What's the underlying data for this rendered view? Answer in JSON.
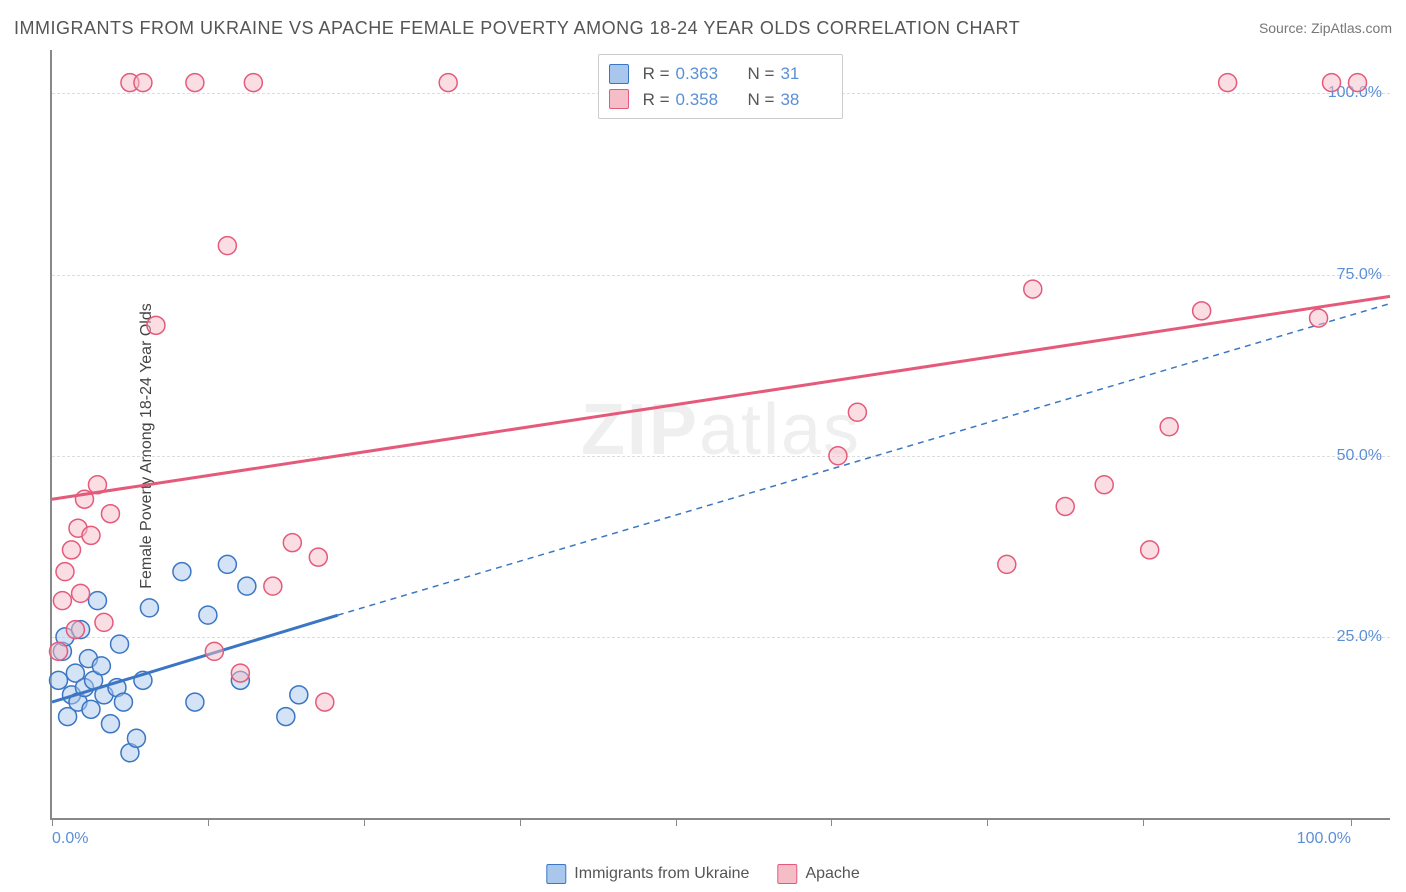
{
  "title": "IMMIGRANTS FROM UKRAINE VS APACHE FEMALE POVERTY AMONG 18-24 YEAR OLDS CORRELATION CHART",
  "source_prefix": "Source: ",
  "source": "ZipAtlas.com",
  "ylabel": "Female Poverty Among 18-24 Year Olds",
  "watermark": "ZIPatlas",
  "chart": {
    "type": "scatter",
    "background_color": "#ffffff",
    "grid_color": "#dddddd",
    "axis_color": "#888888",
    "xlim": [
      0,
      103
    ],
    "ylim": [
      0,
      106
    ],
    "xticks": [
      0.0,
      12.0,
      24.0,
      36.0,
      48.0,
      60.0,
      72.0,
      84.0,
      100.0
    ],
    "xtick_labels": {
      "0": "0.0%",
      "100": "100.0%"
    },
    "yticks": [
      25.0,
      50.0,
      75.0,
      100.0
    ],
    "ytick_labels": [
      "25.0%",
      "50.0%",
      "75.0%",
      "100.0%"
    ],
    "marker_radius": 9,
    "marker_opacity": 0.5,
    "trend_line_width": 3,
    "dashed_dash": "6,5",
    "series": [
      {
        "id": "ukraine",
        "label": "Immigrants from Ukraine",
        "color_fill": "#a9c7ec",
        "color_stroke": "#3b76c4",
        "R": "0.363",
        "N": "31",
        "trend_solid": {
          "x1": 0,
          "y1": 16,
          "x2": 22,
          "y2": 28
        },
        "trend_dashed": {
          "x1": 22,
          "y1": 28,
          "x2": 103,
          "y2": 71
        },
        "points": [
          [
            0.5,
            19
          ],
          [
            0.8,
            23
          ],
          [
            1.0,
            25
          ],
          [
            1.2,
            14
          ],
          [
            1.5,
            17
          ],
          [
            1.8,
            20
          ],
          [
            2.0,
            16
          ],
          [
            2.2,
            26
          ],
          [
            2.5,
            18
          ],
          [
            2.8,
            22
          ],
          [
            3.0,
            15
          ],
          [
            3.2,
            19
          ],
          [
            3.5,
            30
          ],
          [
            3.8,
            21
          ],
          [
            4.0,
            17
          ],
          [
            4.5,
            13
          ],
          [
            5.0,
            18
          ],
          [
            5.2,
            24
          ],
          [
            5.5,
            16
          ],
          [
            6.0,
            9
          ],
          [
            6.5,
            11
          ],
          [
            7.0,
            19
          ],
          [
            7.5,
            29
          ],
          [
            10.0,
            34
          ],
          [
            11.0,
            16
          ],
          [
            12.0,
            28
          ],
          [
            13.5,
            35
          ],
          [
            14.5,
            19
          ],
          [
            15.0,
            32
          ],
          [
            18.0,
            14
          ],
          [
            19.0,
            17
          ]
        ]
      },
      {
        "id": "apache",
        "label": "Apache",
        "color_fill": "#f5bdc8",
        "color_stroke": "#e55a7a",
        "R": "0.358",
        "N": "38",
        "trend_solid": {
          "x1": 0,
          "y1": 44,
          "x2": 103,
          "y2": 72
        },
        "trend_dashed": null,
        "points": [
          [
            0.5,
            23
          ],
          [
            0.8,
            30
          ],
          [
            1.0,
            34
          ],
          [
            1.5,
            37
          ],
          [
            1.8,
            26
          ],
          [
            2.0,
            40
          ],
          [
            2.2,
            31
          ],
          [
            2.5,
            44
          ],
          [
            3.0,
            39
          ],
          [
            3.5,
            46
          ],
          [
            4.0,
            27
          ],
          [
            4.5,
            42
          ],
          [
            6.0,
            101.5
          ],
          [
            7.0,
            101.5
          ],
          [
            8.0,
            68
          ],
          [
            11.0,
            101.5
          ],
          [
            12.5,
            23
          ],
          [
            13.5,
            79
          ],
          [
            14.5,
            20
          ],
          [
            15.5,
            101.5
          ],
          [
            17.0,
            32
          ],
          [
            18.5,
            38
          ],
          [
            20.5,
            36
          ],
          [
            21.0,
            16
          ],
          [
            30.5,
            101.5
          ],
          [
            60.5,
            50
          ],
          [
            62.0,
            56
          ],
          [
            73.5,
            35
          ],
          [
            75.5,
            73
          ],
          [
            78.0,
            43
          ],
          [
            81.0,
            46
          ],
          [
            84.5,
            37
          ],
          [
            86.0,
            54
          ],
          [
            88.5,
            70
          ],
          [
            90.5,
            101.5
          ],
          [
            97.5,
            69
          ],
          [
            98.5,
            101.5
          ],
          [
            100.5,
            101.5
          ]
        ]
      }
    ],
    "legend_stats": {
      "R_prefix": "R = ",
      "N_prefix": "N = "
    }
  }
}
